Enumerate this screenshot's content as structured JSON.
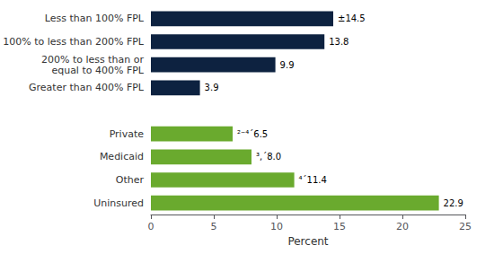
{
  "chart_data": {
    "type": "bar",
    "orientation": "horizontal",
    "categories": [
      "Less than 100% FPL",
      "100% to less than 200% FPL",
      "200% to less than or\nequal to 400% FPL",
      "Greater than 400% FPL",
      null,
      "Private",
      "Medicaid",
      "Other",
      "Uninsured"
    ],
    "values": [
      14.5,
      13.8,
      9.9,
      3.9,
      null,
      6.5,
      8.0,
      11.4,
      22.9
    ],
    "value_labels": [
      "±14.5",
      "13.8",
      "9.9",
      "3.9",
      null,
      "²⁻⁴´6.5",
      "³,´8.0",
      "⁴´11.4",
      "22.9"
    ],
    "colors": [
      "#0d2240",
      "#0d2240",
      "#0d2240",
      "#0d2240",
      null,
      "#6aaa2e",
      "#6aaa2e",
      "#6aaa2e",
      "#6aaa2e"
    ],
    "data_labels": true,
    "xlabel": "Percent",
    "xlim": [
      0,
      25
    ],
    "xticks": [
      0,
      5,
      10,
      15,
      20,
      25
    ],
    "grid": false
  }
}
